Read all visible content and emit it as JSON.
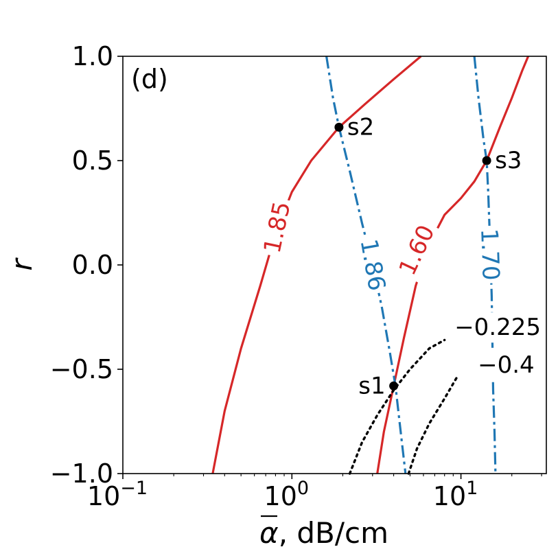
{
  "chart_data": {
    "type": "line",
    "panel_label": "(d)",
    "xlabel": "α, dB/cm",
    "xlabel_symbol": "α",
    "xlabel_unit": ", dB/cm",
    "ylabel": "r",
    "xscale": "log",
    "xlim": [
      0.1,
      32
    ],
    "ylim": [
      -1.0,
      1.0
    ],
    "x_ticks": [
      {
        "value": 0.1,
        "base": "10",
        "exp": "−1"
      },
      {
        "value": 1,
        "base": "10",
        "exp": "0"
      },
      {
        "value": 10,
        "base": "10",
        "exp": "1"
      }
    ],
    "y_ticks": [
      {
        "value": 1.0,
        "label": "1.0"
      },
      {
        "value": 0.5,
        "label": "0.5"
      },
      {
        "value": 0.0,
        "label": "0.0"
      },
      {
        "value": -0.5,
        "label": "−0.5"
      },
      {
        "value": -1.0,
        "label": "−1.0"
      }
    ],
    "colors": {
      "red": "#d62728",
      "blue": "#1f77b4",
      "black": "#000000"
    },
    "series": [
      {
        "label": "1.85",
        "color": "#d62728",
        "style": "solid",
        "points": [
          [
            0.34,
            -1.0
          ],
          [
            0.4,
            -0.7
          ],
          [
            0.5,
            -0.4
          ],
          [
            0.65,
            -0.1
          ],
          [
            0.8,
            0.15
          ],
          [
            1.0,
            0.35
          ],
          [
            1.3,
            0.5
          ],
          [
            1.9,
            0.66
          ],
          [
            2.7,
            0.77
          ],
          [
            4.0,
            0.89
          ],
          [
            5.8,
            1.0
          ]
        ],
        "label_at": [
          0.82,
          0.18
        ],
        "label_rotation": -78
      },
      {
        "label": "1.60",
        "color": "#d62728",
        "style": "solid",
        "points": [
          [
            3.2,
            -1.0
          ],
          [
            3.5,
            -0.8
          ],
          [
            4.0,
            -0.58
          ],
          [
            4.6,
            -0.35
          ],
          [
            5.4,
            -0.1
          ],
          [
            6.5,
            0.1
          ],
          [
            8.0,
            0.24
          ],
          [
            10.0,
            0.32
          ],
          [
            12.0,
            0.4
          ],
          [
            14.2,
            0.5
          ],
          [
            17.0,
            0.66
          ],
          [
            20.0,
            0.8
          ],
          [
            23.0,
            0.93
          ],
          [
            25.0,
            1.0
          ]
        ],
        "label_at": [
          5.5,
          0.07
        ],
        "label_rotation": -65
      },
      {
        "label": "1.86",
        "color": "#1f77b4",
        "style": "dashdot",
        "points": [
          [
            1.6,
            1.0
          ],
          [
            1.75,
            0.8
          ],
          [
            1.9,
            0.66
          ],
          [
            2.2,
            0.45
          ],
          [
            2.6,
            0.2
          ],
          [
            3.0,
            0.0
          ],
          [
            3.4,
            -0.2
          ],
          [
            3.8,
            -0.42
          ],
          [
            4.1,
            -0.58
          ],
          [
            4.4,
            -0.8
          ],
          [
            4.7,
            -1.0
          ]
        ],
        "label_at": [
          3.0,
          0.0
        ],
        "label_rotation": 80
      },
      {
        "label": "1.70",
        "color": "#1f77b4",
        "style": "dashdot",
        "points": [
          [
            12.0,
            1.0
          ],
          [
            12.7,
            0.8
          ],
          [
            13.6,
            0.6
          ],
          [
            14.2,
            0.5
          ],
          [
            14.5,
            0.35
          ],
          [
            14.8,
            0.15
          ],
          [
            15.0,
            0.0
          ],
          [
            15.2,
            -0.15
          ],
          [
            15.3,
            -0.3
          ],
          [
            15.5,
            -0.6
          ],
          [
            15.8,
            -0.8
          ],
          [
            16.0,
            -1.0
          ]
        ],
        "label_at": [
          14.8,
          0.05
        ],
        "label_rotation": 88
      },
      {
        "label": "−0.225",
        "color": "#000000",
        "style": "dotted",
        "points": [
          [
            2.2,
            -1.0
          ],
          [
            2.6,
            -0.85
          ],
          [
            3.2,
            -0.72
          ],
          [
            4.0,
            -0.6
          ],
          [
            5.0,
            -0.5
          ],
          [
            6.5,
            -0.4
          ],
          [
            8.0,
            -0.36
          ]
        ],
        "label_at": [
          16.5,
          -0.3
        ],
        "label_rotation": 0
      },
      {
        "label": "−0.4",
        "color": "#000000",
        "style": "dotted",
        "points": [
          [
            4.9,
            -1.0
          ],
          [
            5.5,
            -0.88
          ],
          [
            6.5,
            -0.76
          ],
          [
            8.0,
            -0.64
          ],
          [
            9.6,
            -0.53
          ]
        ],
        "label_at": [
          18.5,
          -0.48
        ],
        "label_rotation": 0
      }
    ],
    "points": [
      {
        "name": "s1",
        "x": 4.0,
        "y": -0.58,
        "label_side": "left"
      },
      {
        "name": "s2",
        "x": 1.9,
        "y": 0.66,
        "label_side": "right"
      },
      {
        "name": "s3",
        "x": 14.2,
        "y": 0.5,
        "label_side": "right"
      }
    ]
  }
}
